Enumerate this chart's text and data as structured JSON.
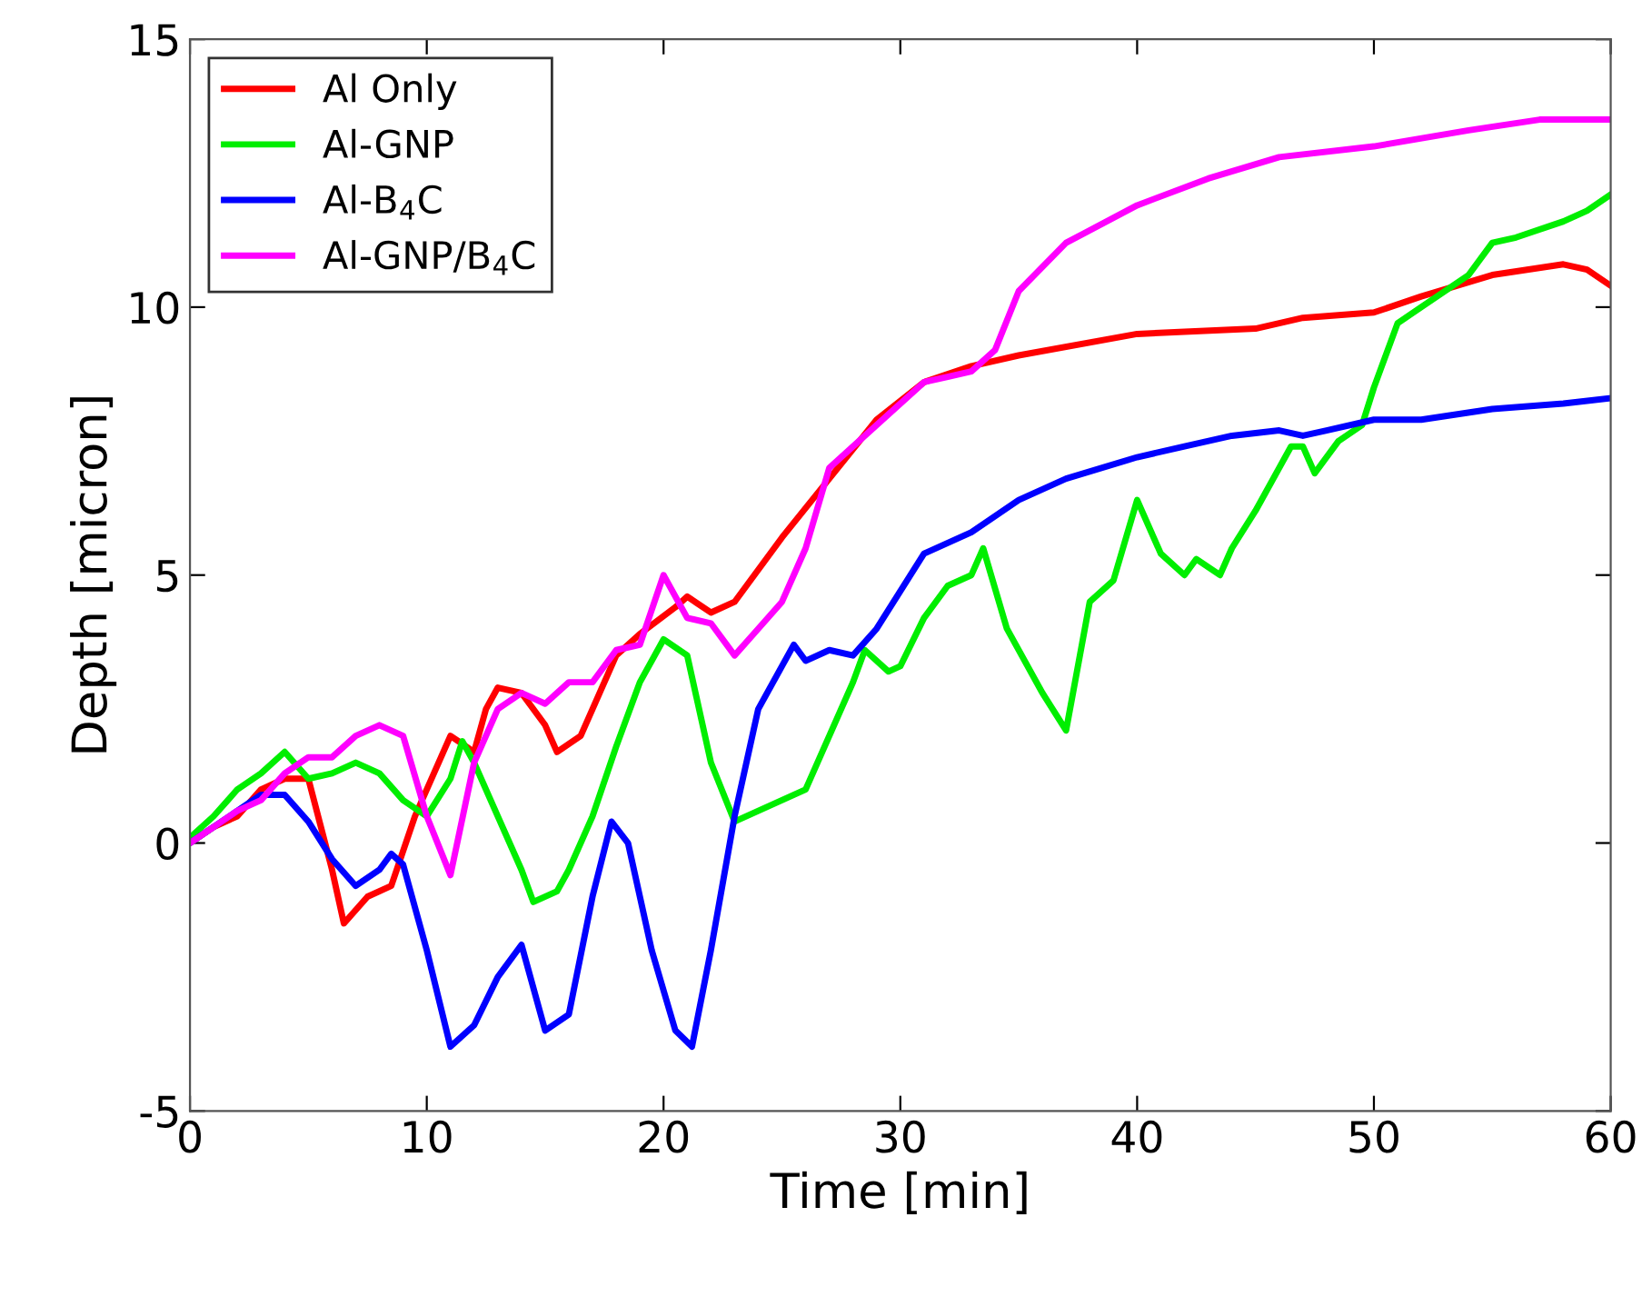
{
  "chart_data": {
    "type": "line",
    "xlabel": "Time [min]",
    "ylabel": "Depth [micron]",
    "xlim": [
      0,
      60
    ],
    "ylim": [
      -5,
      15
    ],
    "xticks": [
      0,
      10,
      20,
      30,
      40,
      50,
      60
    ],
    "yticks": [
      -5,
      0,
      5,
      10,
      15
    ],
    "grid": false,
    "legend": "top left",
    "series": [
      {
        "name": "Al Only",
        "color": "#ff0000",
        "x": [
          0,
          1,
          2,
          3,
          4,
          5,
          6,
          6.5,
          7.5,
          8.5,
          9.5,
          10.5,
          11,
          12,
          12.5,
          13,
          14,
          15,
          15.5,
          16.5,
          17,
          18,
          19,
          20.5,
          21,
          22,
          23,
          25,
          27,
          29,
          31,
          33,
          35,
          40,
          45,
          47,
          50,
          52,
          55,
          58,
          59,
          60
        ],
        "values": [
          0,
          0.3,
          0.5,
          1.0,
          1.2,
          1.2,
          -0.5,
          -1.5,
          -1.0,
          -0.8,
          0.5,
          1.5,
          2.0,
          1.7,
          2.5,
          2.9,
          2.8,
          2.2,
          1.7,
          2.0,
          2.5,
          3.5,
          3.9,
          4.4,
          4.6,
          4.3,
          4.5,
          5.7,
          6.8,
          7.9,
          8.6,
          8.9,
          9.1,
          9.5,
          9.6,
          9.8,
          9.9,
          10.2,
          10.6,
          10.8,
          10.7,
          10.4
        ]
      },
      {
        "name": "Al-GNP",
        "color": "#00ee00",
        "x": [
          0,
          1,
          2,
          3,
          4,
          5,
          6,
          7,
          8,
          9,
          10,
          11,
          11.5,
          12,
          13,
          14,
          14.5,
          15.5,
          16,
          17,
          18,
          19,
          20,
          21,
          22,
          23,
          24,
          25,
          26,
          27,
          28,
          28.5,
          29.5,
          30,
          31,
          32,
          33,
          33.5,
          34.5,
          36,
          37,
          38,
          39,
          40,
          41,
          42,
          42.5,
          43.5,
          44,
          45,
          46.5,
          47,
          47.5,
          48.5,
          49.5,
          50,
          51,
          52,
          54,
          55,
          56,
          58,
          59,
          60
        ],
        "values": [
          0.1,
          0.5,
          1.0,
          1.3,
          1.7,
          1.2,
          1.3,
          1.5,
          1.3,
          0.8,
          0.5,
          1.2,
          1.9,
          1.5,
          0.5,
          -0.5,
          -1.1,
          -0.9,
          -0.5,
          0.5,
          1.8,
          3.0,
          3.8,
          3.5,
          1.5,
          0.4,
          0.6,
          0.8,
          1.0,
          2.0,
          3.0,
          3.6,
          3.2,
          3.3,
          4.2,
          4.8,
          5.0,
          5.5,
          4.0,
          2.8,
          2.1,
          4.5,
          4.9,
          6.4,
          5.4,
          5.0,
          5.3,
          5.0,
          5.5,
          6.2,
          7.4,
          7.4,
          6.9,
          7.5,
          7.8,
          8.5,
          9.7,
          10.0,
          10.6,
          11.2,
          11.3,
          11.6,
          11.8,
          12.1
        ]
      },
      {
        "name": "Al-B$_{4}$C",
        "color": "#0000ff",
        "x": [
          0,
          2,
          3,
          4,
          5,
          6,
          7,
          8,
          8.5,
          9,
          10,
          11,
          12,
          13,
          14,
          15,
          16,
          17,
          17.8,
          18.5,
          19.5,
          20.5,
          21.2,
          22,
          23,
          24,
          25.5,
          26,
          27,
          28,
          29,
          30,
          31,
          33,
          35,
          37,
          40,
          42,
          44,
          46,
          47,
          48,
          50,
          52,
          55,
          58,
          60
        ],
        "values": [
          0.0,
          0.6,
          0.9,
          0.9,
          0.4,
          -0.3,
          -0.8,
          -0.5,
          -0.2,
          -0.4,
          -2.0,
          -3.8,
          -3.4,
          -2.5,
          -1.9,
          -3.5,
          -3.2,
          -1.0,
          0.4,
          0.0,
          -2.0,
          -3.5,
          -3.8,
          -2.0,
          0.5,
          2.5,
          3.7,
          3.4,
          3.6,
          3.5,
          4.0,
          4.7,
          5.4,
          5.8,
          6.4,
          6.8,
          7.2,
          7.4,
          7.6,
          7.7,
          7.6,
          7.7,
          7.9,
          7.9,
          8.1,
          8.2,
          8.3
        ]
      },
      {
        "name": "Al-GNP/B$_{4}$C",
        "color": "#ff00ff",
        "x": [
          0,
          1,
          2,
          3,
          4,
          5,
          6,
          7,
          8,
          9,
          10,
          11,
          12,
          13,
          14,
          15,
          16,
          17,
          18,
          19,
          20,
          21,
          22,
          23,
          24,
          25,
          26,
          27,
          29,
          31,
          32,
          33,
          34,
          35,
          37,
          40,
          43,
          46,
          50,
          54,
          57,
          60
        ],
        "values": [
          0.0,
          0.3,
          0.6,
          0.8,
          1.3,
          1.6,
          1.6,
          2.0,
          2.2,
          2.0,
          0.5,
          -0.6,
          1.5,
          2.5,
          2.8,
          2.6,
          3.0,
          3.0,
          3.6,
          3.7,
          5.0,
          4.2,
          4.1,
          3.5,
          4.0,
          4.5,
          5.5,
          7.0,
          7.8,
          8.6,
          8.7,
          8.8,
          9.2,
          10.3,
          11.2,
          11.9,
          12.4,
          12.8,
          13.0,
          13.3,
          13.5,
          13.5
        ]
      }
    ]
  }
}
